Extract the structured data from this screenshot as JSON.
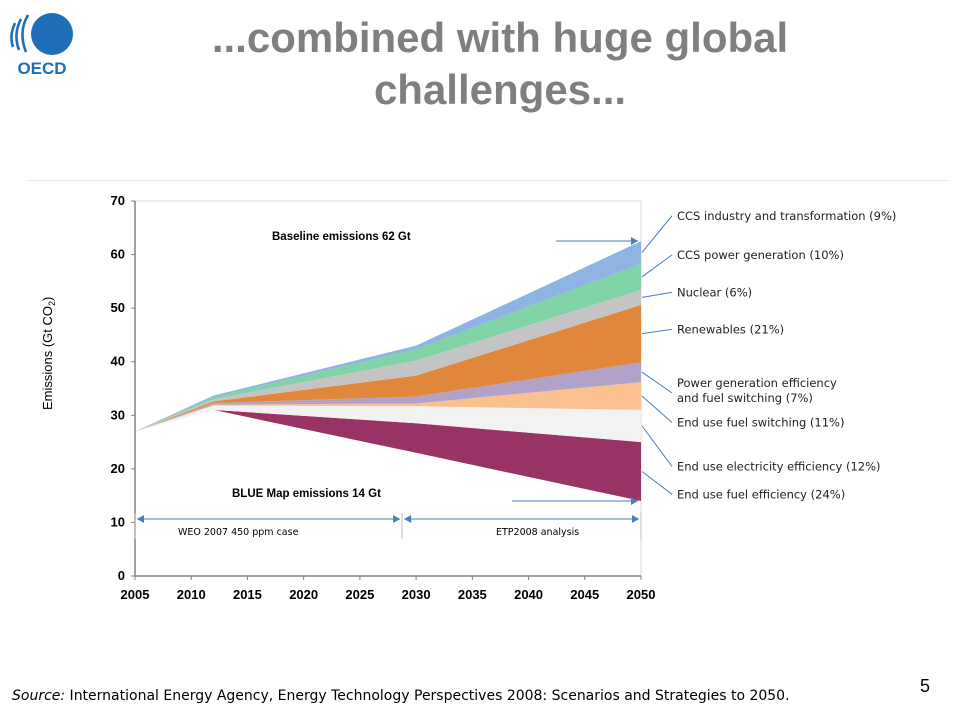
{
  "slide": {
    "title_line1": "...combined with huge global",
    "title_line2": "challenges...",
    "logo_text": "OECD",
    "source_label": "Source:",
    "source_text": " International Energy Agency, Energy Technology Perspectives 2008: Scenarios and Strategies to 2050.",
    "page_number": "5"
  },
  "chart_data": {
    "type": "area",
    "ylabel": "Emissions (Gt CO",
    "ylabel_sub": "2",
    "ylabel_end": ")",
    "ylim": [
      0,
      70
    ],
    "xlim": [
      2005,
      2050
    ],
    "xticks": [
      2005,
      2010,
      2015,
      2020,
      2025,
      2030,
      2035,
      2040,
      2045,
      2050
    ],
    "yticks": [
      0,
      10,
      20,
      30,
      40,
      50,
      60,
      70
    ],
    "grid": false,
    "annotations": {
      "baseline": "Baseline emissions 62 Gt",
      "blue_map": "BLUE Map emissions 14 Gt",
      "weo_case": "WEO 2007 450 ppm case",
      "etp_analysis": "ETP2008 analysis"
    },
    "x": [
      2005,
      2012,
      2030,
      2050
    ],
    "baseline_start": [
      27,
      31,
      28.5,
      25
    ],
    "blue_map_line": [
      27,
      31,
      23,
      14
    ],
    "series": [
      {
        "name": "End use fuel efficiency (24%)",
        "color": "#993366",
        "label_y": 14.5,
        "thickness": [
          0,
          0,
          5.5,
          11
        ]
      },
      {
        "name": "End use electricity efficiency (12%)",
        "color": "#f2f2f2",
        "label_y": 19.7,
        "thickness": [
          0,
          0.8,
          3.2,
          6
        ]
      },
      {
        "name": "End use fuel switching (11%)",
        "color": "#fac08f",
        "label_y": 27.9,
        "thickness": [
          0,
          0.2,
          0.5,
          5.2
        ]
      },
      {
        "name": "Power generation efficiency and fuel switching (7%)",
        "color": "#b3a2c7",
        "label_y": 35.3,
        "thickness": [
          0,
          0.3,
          1.3,
          3.7
        ]
      },
      {
        "name": "Renewables (21%)",
        "color": "#e0873c",
        "label_y": 45.3,
        "thickness": [
          0,
          0.3,
          3.9,
          10.7
        ]
      },
      {
        "name": "Nuclear (6%)",
        "color": "#c4c4c4",
        "label_y": 52.2,
        "thickness": [
          0,
          0.4,
          2.8,
          2.8
        ]
      },
      {
        "name": "CCS power generation (10%)",
        "color": "#7fd3a4",
        "label_y": 59.2,
        "thickness": [
          0,
          0.4,
          2.1,
          4.9
        ]
      },
      {
        "name": "CCS industry and transformation (9%)",
        "color": "#8eb4e3",
        "label_y": 66.5,
        "thickness": [
          0,
          0.3,
          0.7,
          4.2
        ]
      }
    ],
    "series_label_lines": [
      [
        "End use fuel efficiency (24%)"
      ],
      [
        "End use electricity efficiency (12%)"
      ],
      [
        "End use fuel switching (11%)"
      ],
      [
        "Power generation efficiency",
        "and fuel switching (7%)"
      ],
      [
        "Renewables (21%)"
      ],
      [
        "Nuclear (6%)"
      ],
      [
        "CCS power generation (10%)"
      ],
      [
        "CCS industry and transformation (9%)"
      ]
    ]
  }
}
